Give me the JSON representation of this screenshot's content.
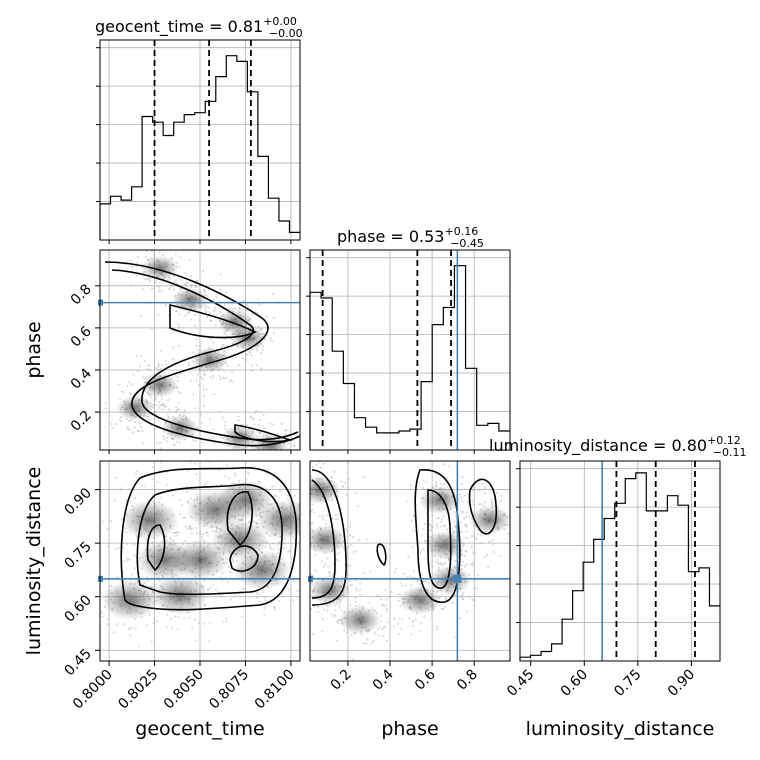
{
  "colors": {
    "truth": "#4682b4",
    "line": "#000000",
    "grid": "#b0b0b0"
  },
  "chart_data": {
    "type": "corner",
    "parameters": [
      "geocent_time",
      "phase",
      "luminosity_distance"
    ],
    "axis_labels": [
      "geocent_time",
      "phase",
      "luminosity_distance"
    ],
    "ranges": [
      [
        0.7995,
        0.8105
      ],
      [
        0.02,
        0.97
      ],
      [
        0.42,
        0.98
      ]
    ],
    "ticks": [
      [
        0.8,
        0.8025,
        0.805,
        0.8075,
        0.81
      ],
      [
        0.2,
        0.4,
        0.6,
        0.8
      ],
      [
        0.45,
        0.6,
        0.75,
        0.9
      ]
    ],
    "tick_labels": [
      [
        "0.8000",
        "0.8025",
        "0.8050",
        "0.8075",
        "0.8100"
      ],
      [
        "0.2",
        "0.4",
        "0.6",
        "0.8"
      ],
      [
        "0.45",
        "0.60",
        "0.75",
        "0.90"
      ]
    ],
    "truths": [
      null,
      0.72,
      0.65
    ],
    "titles": [
      {
        "base": "geocent_time = 0.81",
        "sup": "+0.00",
        "sub": "−0.00"
      },
      {
        "base": "phase = 0.53",
        "sup": "+0.16",
        "sub": "−0.45"
      },
      {
        "base": "luminosity_distance = 0.80",
        "sup": "+0.12",
        "sub": "−0.11"
      }
    ],
    "quantiles": [
      [
        0.8025,
        0.8055,
        0.8078
      ],
      [
        0.08,
        0.53,
        0.69
      ],
      [
        0.69,
        0.8,
        0.91
      ]
    ],
    "histograms": [
      [
        0.19,
        0.23,
        0.21,
        0.28,
        0.65,
        0.62,
        0.55,
        0.62,
        0.66,
        0.67,
        0.73,
        0.86,
        0.97,
        0.94,
        0.78,
        0.44,
        0.22,
        0.1,
        0.04
      ],
      [
        0.83,
        0.8,
        0.52,
        0.35,
        0.17,
        0.12,
        0.09,
        0.09,
        0.1,
        0.11,
        0.36,
        0.66,
        0.75,
        0.97,
        0.43,
        0.13,
        0.14,
        0.1
      ],
      [
        0.02,
        0.03,
        0.05,
        0.09,
        0.22,
        0.37,
        0.52,
        0.64,
        0.75,
        0.83,
        0.96,
        0.99,
        0.79,
        0.79,
        0.87,
        0.82,
        0.47,
        0.49,
        0.29
      ]
    ]
  }
}
